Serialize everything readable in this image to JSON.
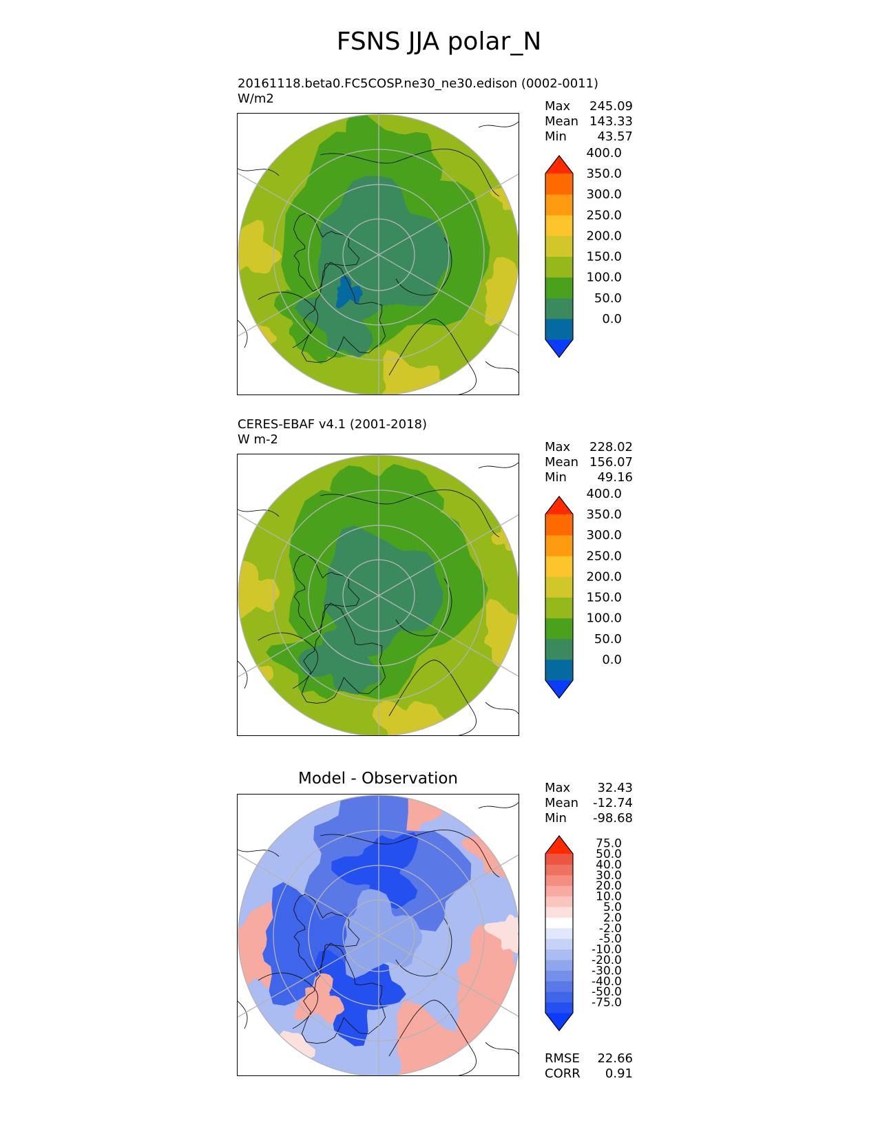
{
  "figure_title": "FSNS JJA polar_N",
  "panels": [
    {
      "id": "model",
      "title_line1": "20161118.beta0.FC5COSP.ne30_ne30.edison (0002-0011)",
      "title_line2": "W/m2",
      "stats": [
        {
          "label": "Max",
          "value": "245.09"
        },
        {
          "label": "Mean",
          "value": "143.33"
        },
        {
          "label": "Min",
          "value": "43.57"
        }
      ],
      "colorbar": {
        "levels": [
          "0.0",
          "50.0",
          "100.0",
          "150.0",
          "200.0",
          "250.0",
          "300.0",
          "350.0",
          "400.0"
        ],
        "colors": [
          "#0a3cff",
          "#046a9f",
          "#3a8a5e",
          "#4aa21c",
          "#95b81a",
          "#d1c72b",
          "#fbc42a",
          "#fd9a0f",
          "#ff6a00",
          "#ff2a00"
        ]
      }
    },
    {
      "id": "obs",
      "title_line1": "CERES-EBAF v4.1 (2001-2018)",
      "title_line2": "W m-2",
      "stats": [
        {
          "label": "Max",
          "value": "228.02"
        },
        {
          "label": "Mean",
          "value": "156.07"
        },
        {
          "label": "Min",
          "value": "49.16"
        }
      ],
      "colorbar": {
        "levels": [
          "0.0",
          "50.0",
          "100.0",
          "150.0",
          "200.0",
          "250.0",
          "300.0",
          "350.0",
          "400.0"
        ],
        "colors": [
          "#0a3cff",
          "#046a9f",
          "#3a8a5e",
          "#4aa21c",
          "#95b81a",
          "#d1c72b",
          "#fbc42a",
          "#fd9a0f",
          "#ff6a00",
          "#ff2a00"
        ]
      }
    },
    {
      "id": "diff",
      "title_center": "Model - Observation",
      "stats": [
        {
          "label": "Max",
          "value": "32.43"
        },
        {
          "label": "Mean",
          "value": "-12.74"
        },
        {
          "label": "Min",
          "value": "-98.68"
        }
      ],
      "extra_stats": [
        {
          "label": "RMSE",
          "value": "22.66"
        },
        {
          "label": "CORR",
          "value": "0.91"
        }
      ],
      "colorbar": {
        "levels": [
          "-75.0",
          "-50.0",
          "-40.0",
          "-30.0",
          "-20.0",
          "-10.0",
          "-5.0",
          "-2.0",
          "2.0",
          "5.0",
          "10.0",
          "20.0",
          "30.0",
          "40.0",
          "50.0",
          "75.0"
        ],
        "colors": [
          "#0a3cff",
          "#2550f0",
          "#3f65ea",
          "#5a79e6",
          "#7590e8",
          "#90a6ec",
          "#aabcf1",
          "#c6d2f6",
          "#e2e8fb",
          "#ffffff",
          "#fbe1de",
          "#f9c6bf",
          "#f6aaa0",
          "#f38e80",
          "#ef7260",
          "#ec5641",
          "#ff2a00"
        ]
      }
    }
  ]
}
